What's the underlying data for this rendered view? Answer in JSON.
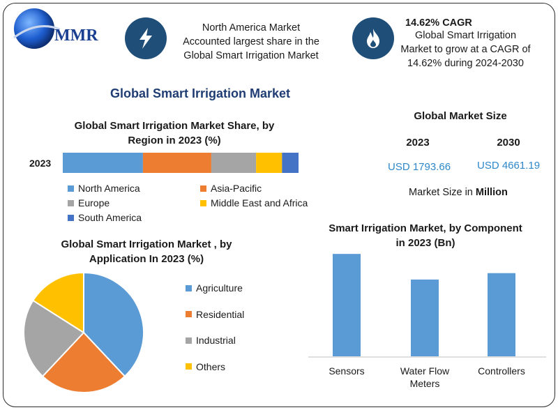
{
  "logo": {
    "text": "MMR"
  },
  "header": {
    "info1": {
      "icon": "lightning-icon",
      "lines": [
        "North America Market",
        "Accounted largest share in the",
        "Global Smart Irrigation Market"
      ]
    },
    "info2": {
      "icon": "flame-icon",
      "title": "14.62% CAGR",
      "lines": [
        "Global Smart Irrigation",
        "Market to grow at a CAGR of",
        "14.62% during 2024-2030"
      ]
    }
  },
  "main_title": "Global Smart Irrigation Market",
  "market_size": {
    "title": "Global Market Size",
    "years": [
      "2023",
      "2030"
    ],
    "values": [
      "USD 1793.66",
      "USD 4661.19"
    ],
    "unit_prefix": "Market Size in",
    "unit": "Million"
  },
  "colors": {
    "blue": "#5b9bd5",
    "orange": "#ed7d31",
    "gray": "#a5a5a5",
    "yellow": "#ffc000",
    "darkblue": "#4472c4",
    "circle": "#1f4e79",
    "title": "#1f3d73"
  },
  "chart_data": [
    {
      "type": "bar",
      "orientation": "horizontal-stacked",
      "title_lines": [
        "Global Smart Irrigation Market Share, by",
        "Region in 2023 (%)"
      ],
      "categories": [
        "2023"
      ],
      "series": [
        {
          "name": "North America",
          "values": [
            34
          ],
          "color": "#5b9bd5"
        },
        {
          "name": "Asia-Pacific",
          "values": [
            29
          ],
          "color": "#ed7d31"
        },
        {
          "name": "Europe",
          "values": [
            19
          ],
          "color": "#a5a5a5"
        },
        {
          "name": "Middle East and Africa",
          "values": [
            11
          ],
          "color": "#ffc000"
        },
        {
          "name": "South America",
          "values": [
            7
          ],
          "color": "#4472c4"
        }
      ],
      "legend_placement": "bottom"
    },
    {
      "type": "pie",
      "title_lines": [
        "Global Smart Irrigation Market , by",
        "Application In 2023 (%)"
      ],
      "slices": [
        {
          "name": "Agriculture",
          "value": 38,
          "color": "#5b9bd5"
        },
        {
          "name": "Residential",
          "value": 24,
          "color": "#ed7d31"
        },
        {
          "name": "Industrial",
          "value": 22,
          "color": "#a5a5a5"
        },
        {
          "name": "Others",
          "value": 16,
          "color": "#ffc000"
        }
      ],
      "legend_placement": "right"
    },
    {
      "type": "bar",
      "title_lines": [
        "Smart Irrigation Market, by Component",
        "in 2023 (Bn)"
      ],
      "categories": [
        "Sensors",
        "Water Flow Meters",
        "Controllers"
      ],
      "category_lines": [
        [
          "Sensors"
        ],
        [
          "Water Flow",
          "Meters"
        ],
        [
          "Controllers"
        ]
      ],
      "values": [
        0.8,
        0.6,
        0.65
      ],
      "ylim": [
        0,
        0.85
      ],
      "color": "#5b9bd5"
    }
  ]
}
